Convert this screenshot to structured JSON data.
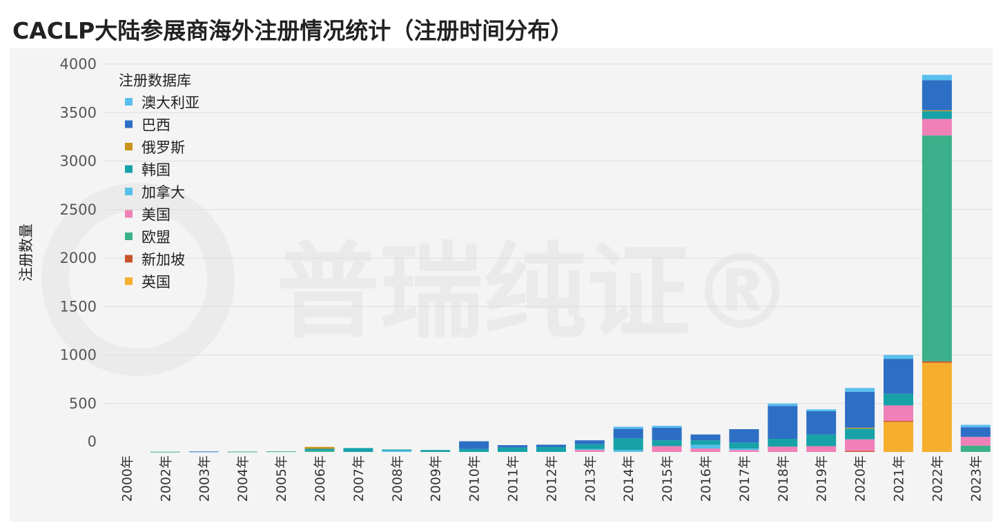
{
  "chart_data": {
    "type": "bar",
    "stacked": true,
    "title": "CACLP大陆参展商海外注册情况统计（注册时间分布）",
    "ylabel": "注册数量",
    "xlabel": "",
    "ylim": [
      -100,
      4000
    ],
    "yticks": [
      0,
      500,
      1000,
      1500,
      2000,
      2500,
      3000,
      3500,
      4000
    ],
    "grid": true,
    "legend_title": "注册数据库",
    "legend_position": "top-left",
    "watermark": "普瑞纯证®",
    "categories": [
      "2000年",
      "2002年",
      "2003年",
      "2004年",
      "2005年",
      "2006年",
      "2007年",
      "2008年",
      "2009年",
      "2010年",
      "2011年",
      "2012年",
      "2013年",
      "2014年",
      "2015年",
      "2016年",
      "2017年",
      "2018年",
      "2019年",
      "2020年",
      "2021年",
      "2022年",
      "2023年"
    ],
    "series": [
      {
        "name": "英国",
        "color": "#F5AE2E",
        "values": [
          0,
          0,
          0,
          0,
          0,
          0,
          0,
          0,
          0,
          0,
          0,
          0,
          0,
          0,
          0,
          0,
          0,
          0,
          0,
          0,
          310,
          920,
          0
        ]
      },
      {
        "name": "新加坡",
        "color": "#C8552A",
        "values": [
          0,
          0,
          0,
          0,
          0,
          0,
          0,
          0,
          0,
          0,
          0,
          0,
          0,
          0,
          0,
          0,
          0,
          0,
          0,
          10,
          10,
          15,
          0
        ]
      },
      {
        "name": "欧盟",
        "color": "#3BB08A",
        "values": [
          0,
          2,
          0,
          4,
          6,
          12,
          0,
          0,
          0,
          0,
          0,
          0,
          0,
          0,
          0,
          0,
          0,
          0,
          0,
          0,
          0,
          2330,
          65
        ]
      },
      {
        "name": "美国",
        "color": "#F080B8",
        "values": [
          0,
          0,
          0,
          0,
          0,
          0,
          0,
          0,
          0,
          0,
          0,
          0,
          20,
          0,
          60,
          35,
          20,
          55,
          60,
          120,
          160,
          170,
          90
        ]
      },
      {
        "name": "加拿大",
        "color": "#56BFEA",
        "values": [
          0,
          0,
          0,
          0,
          0,
          0,
          0,
          15,
          0,
          0,
          0,
          0,
          10,
          20,
          0,
          40,
          15,
          0,
          0,
          0,
          0,
          0,
          0
        ]
      },
      {
        "name": "韩国",
        "color": "#17A2A8",
        "values": [
          0,
          0,
          0,
          0,
          0,
          20,
          40,
          10,
          20,
          30,
          45,
          50,
          50,
          120,
          60,
          45,
          60,
          80,
          120,
          110,
          120,
          80,
          0
        ]
      },
      {
        "name": "俄罗斯",
        "color": "#C9941C",
        "values": [
          0,
          0,
          0,
          0,
          0,
          20,
          0,
          0,
          0,
          0,
          0,
          0,
          0,
          0,
          0,
          0,
          0,
          0,
          0,
          10,
          0,
          10,
          0
        ]
      },
      {
        "name": "巴西",
        "color": "#2D6FC4",
        "values": [
          0,
          0,
          5,
          0,
          0,
          0,
          0,
          0,
          0,
          80,
          25,
          25,
          40,
          100,
          130,
          60,
          140,
          340,
          240,
          370,
          360,
          310,
          100
        ]
      },
      {
        "name": "澳大利亚",
        "color": "#5ABFEF",
        "values": [
          0,
          0,
          0,
          0,
          0,
          0,
          0,
          0,
          0,
          0,
          0,
          0,
          0,
          20,
          20,
          0,
          0,
          25,
          20,
          40,
          40,
          55,
          25
        ]
      }
    ]
  }
}
